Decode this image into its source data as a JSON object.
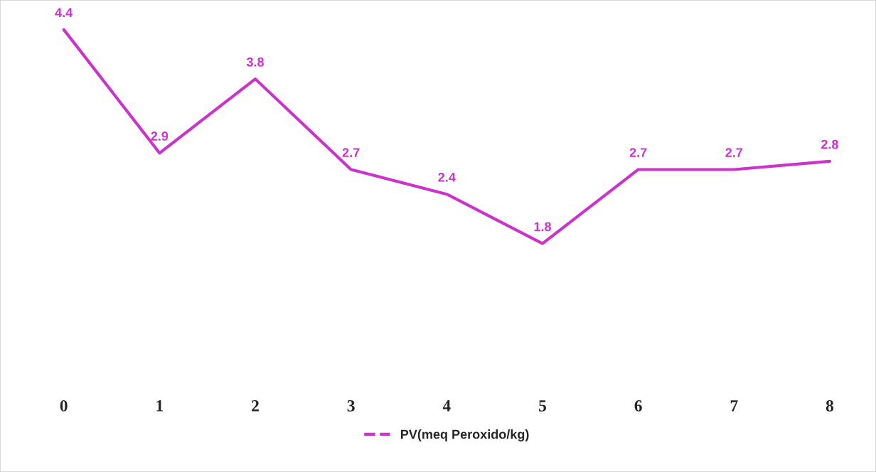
{
  "chart_data": {
    "type": "line",
    "categories": [
      "0",
      "1",
      "2",
      "3",
      "4",
      "5",
      "6",
      "7",
      "8"
    ],
    "series": [
      {
        "name": "PV(meq Peroxido/kg)",
        "color": "#cc33cc",
        "values": [
          4.4,
          2.9,
          3.8,
          2.7,
          2.4,
          1.8,
          2.7,
          2.7,
          2.8
        ]
      }
    ],
    "data_labels": true,
    "legend": "bottom",
    "grid": false,
    "line_style": "solid"
  }
}
